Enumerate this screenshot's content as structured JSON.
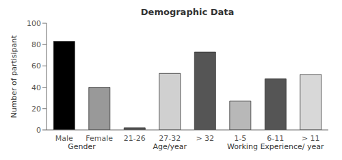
{
  "chart_data": {
    "type": "bar",
    "title": "Demographic Data",
    "ylabel": "Number of partisipant",
    "categories": [
      "Male",
      "Female",
      "21-26",
      "27-32",
      "> 32",
      "1-5",
      "6-11",
      "> 11"
    ],
    "values": [
      83,
      40,
      2,
      53,
      73,
      27,
      48,
      52
    ],
    "colors": [
      "#000000",
      "#999999",
      "#555555",
      "#d0d0d0",
      "#555555",
      "#b8b8b8",
      "#555555",
      "#d8d8d8"
    ],
    "ylim": [
      0,
      100
    ],
    "yticks": [
      0,
      20,
      40,
      60,
      80,
      100
    ],
    "grid": false,
    "annotations": [
      {
        "text": "Gender",
        "categories": [
          "Male",
          "Female"
        ]
      },
      {
        "text": "Age/year",
        "categories": [
          "21-26",
          "27-32",
          "> 32"
        ]
      },
      {
        "text": "Working Experience/ year",
        "categories": [
          "1-5",
          "6-11",
          "> 11"
        ]
      }
    ]
  }
}
